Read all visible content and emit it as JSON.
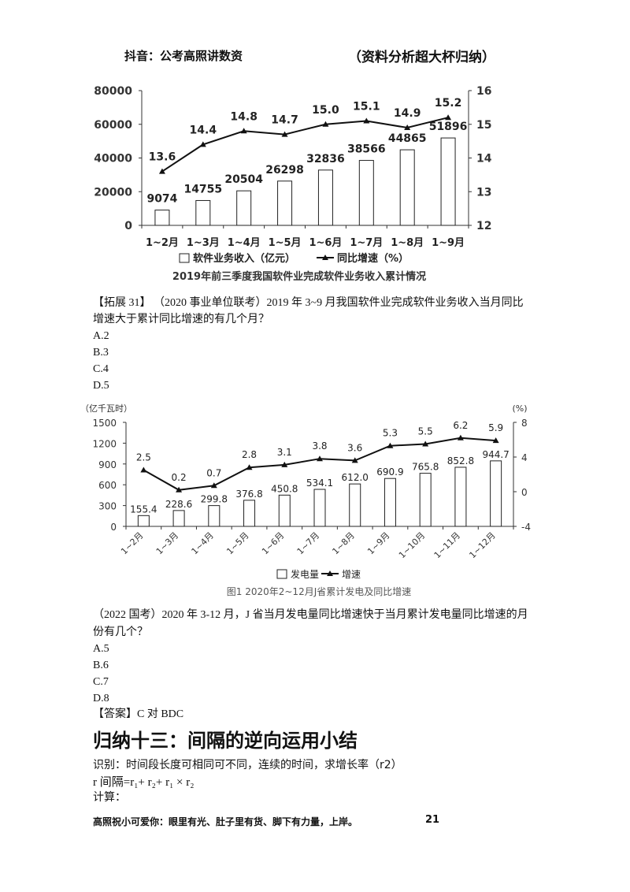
{
  "header": {
    "left": "抖音：公考高照讲数资",
    "right": "（资料分析超大杯归纳）"
  },
  "chart_data": [
    {
      "type": "bar+line",
      "categories": [
        "1~2月",
        "1~3月",
        "1~4月",
        "1~5月",
        "1~6月",
        "1~7月",
        "1~8月",
        "1~9月"
      ],
      "series": [
        {
          "name": "软件业务收入（亿元）",
          "type": "bar",
          "values": [
            9074,
            14755,
            20504,
            26298,
            32836,
            38566,
            44865,
            51896
          ]
        },
        {
          "name": "同比增速（%）",
          "type": "line",
          "values": [
            13.6,
            14.4,
            14.8,
            14.7,
            15.0,
            15.1,
            14.9,
            15.2
          ]
        }
      ],
      "title": "2019年前三季度我国软件业完成软件业务收入累计情况",
      "ylim_left": [
        0,
        80000
      ],
      "yticks_left": [
        "0",
        "20000",
        "40000",
        "60000",
        "80000"
      ],
      "ylim_right": [
        12,
        16
      ],
      "yticks_right": [
        "12",
        "13",
        "14",
        "15",
        "16"
      ],
      "line_labels": [
        "13.6",
        "14.4",
        "14.8",
        "14.7",
        "15.0",
        "15.1",
        "14.9",
        "15.2"
      ],
      "bar_labels": [
        "9074",
        "14755",
        "20504",
        "26298",
        "32836",
        "38566",
        "44865",
        "51896"
      ]
    },
    {
      "type": "bar+line",
      "categories": [
        "1~2月",
        "1~3月",
        "1~4月",
        "1~5月",
        "1~6月",
        "1~7月",
        "1~8月",
        "1~9月",
        "1~10月",
        "1~11月",
        "1~12月"
      ],
      "series": [
        {
          "name": "发电量",
          "type": "bar",
          "values": [
            155.4,
            228.6,
            299.8,
            376.8,
            450.8,
            534.1,
            612.0,
            690.9,
            765.8,
            852.8,
            944.7
          ]
        },
        {
          "name": "增速",
          "type": "line",
          "values": [
            2.5,
            0.2,
            0.7,
            2.8,
            3.1,
            3.8,
            3.6,
            5.3,
            5.5,
            6.2,
            5.9
          ]
        }
      ],
      "title": "图1  2020年2~12月J省累计发电及同比增速",
      "unit_left": "（亿千瓦时）",
      "unit_right": "(%)",
      "ylim_left": [
        0,
        1500
      ],
      "yticks_left": [
        "0",
        "300",
        "600",
        "900",
        "1200",
        "1500"
      ],
      "ylim_right": [
        -4,
        8
      ],
      "yticks_right": [
        "-4",
        "0",
        "4",
        "8"
      ],
      "line_labels": [
        "2.5",
        "0.2",
        "0.7",
        "2.8",
        "3.1",
        "3.8",
        "3.6",
        "5.3",
        "5.5",
        "6.2",
        "5.9"
      ],
      "bar_labels": [
        "155.4",
        "228.6",
        "299.8",
        "376.8",
        "450.8",
        "534.1",
        "612.0",
        "690.9",
        "765.8",
        "852.8",
        "944.7"
      ]
    }
  ],
  "q1": {
    "stem_line1": "【拓展 31】 （2020 事业单位联考）2019 年 3~9 月我国软件业完成软件业务收入当月同比",
    "stem_line2": "增速大于累计同比增速的有几个月？",
    "options": [
      "A.2",
      "B.3",
      "C.4",
      "D.5"
    ]
  },
  "q2": {
    "stem_line1": "（2022 国考）2020 年 3-12 月，J 省当月发电量同比增速快于当月累计发电量同比增速的月",
    "stem_line2": "份有几个？",
    "options": [
      "A.5",
      "B.6",
      "C.7",
      "D.8"
    ],
    "answer": "【答案】C 对 BDC"
  },
  "section": {
    "title": "归纳十三：间隔的逆向运用小结",
    "line1": "识别：时间段长度可相同可不同，连续的时间，求增长率（r2）",
    "formula": "r 间隔=r₁+ r₂+ r₁ × r₂",
    "line3": "计算："
  },
  "footer": {
    "text": "高照祝小可爱你：眼里有光、肚子里有货、脚下有力量，上岸。",
    "page": "21"
  }
}
